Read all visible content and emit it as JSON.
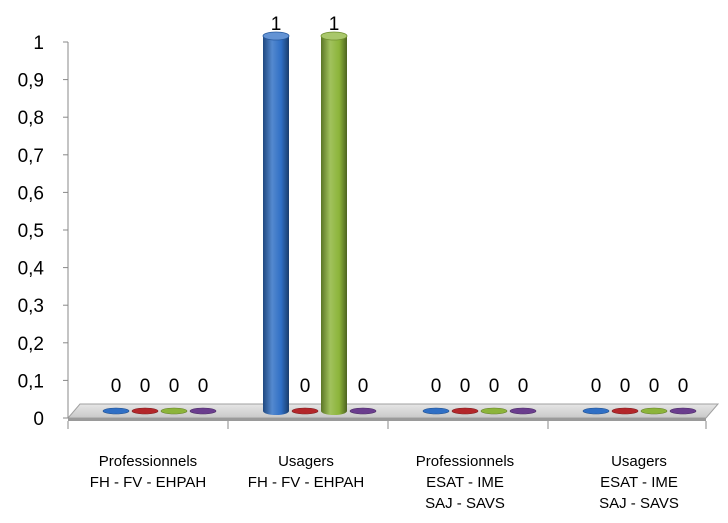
{
  "chart_data": {
    "type": "bar",
    "style": "3d-cylinder",
    "categories": [
      [
        "Professionnels",
        "FH - FV - EHPAH"
      ],
      [
        "Usagers",
        "FH - FV - EHPAH"
      ],
      [
        "Professionnels",
        "ESAT - IME",
        "SAJ - SAVS"
      ],
      [
        "Usagers",
        "ESAT - IME",
        "SAJ - SAVS"
      ]
    ],
    "series": [
      {
        "color": "#2f6fc5",
        "values": [
          0,
          1,
          0,
          0
        ]
      },
      {
        "color": "#b3262a",
        "values": [
          0,
          0,
          0,
          0
        ]
      },
      {
        "color": "#8cb43a",
        "values": [
          0,
          1,
          0,
          0
        ]
      },
      {
        "color": "#6a3d8e",
        "values": [
          0,
          0,
          0,
          0
        ]
      }
    ],
    "y_ticks": [
      "0",
      "0,1",
      "0,2",
      "0,3",
      "0,4",
      "0,5",
      "0,6",
      "0,7",
      "0,8",
      "0,9",
      "1"
    ],
    "ylim": [
      0,
      1
    ],
    "data_labels": [
      [
        "0",
        "0",
        "0",
        "0"
      ],
      [
        "1",
        "0",
        "1",
        "0"
      ],
      [
        "0",
        "0",
        "0",
        "0"
      ],
      [
        "0",
        "0",
        "0",
        "0"
      ]
    ],
    "title": "",
    "xlabel": "",
    "ylabel": "",
    "grid": false,
    "legend": "none"
  }
}
